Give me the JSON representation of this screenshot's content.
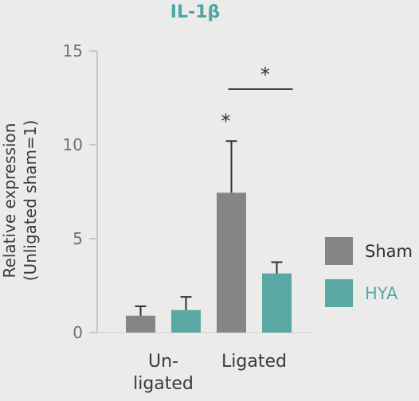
{
  "chart_data": {
    "type": "bar",
    "title": "IL-1β",
    "ylabel_lines": [
      "Relative expression",
      "(Unligated sham=1)"
    ],
    "categories": [
      {
        "lines": [
          "Un-",
          "ligated"
        ]
      },
      {
        "lines": [
          "Ligated"
        ]
      }
    ],
    "series": [
      {
        "name": "Sham",
        "color": "#858585",
        "values": [
          0.9,
          7.45
        ],
        "errors": [
          0.5,
          2.75
        ]
      },
      {
        "name": "HYA",
        "color": "#5aa8a4",
        "values": [
          1.2,
          3.15
        ],
        "errors": [
          0.7,
          0.6
        ]
      }
    ],
    "ylim": [
      0,
      15
    ],
    "yticks": [
      0,
      5,
      10,
      15
    ],
    "title_color": "#4fa6a2",
    "legend_position": "right",
    "annotations": [
      {
        "text": "*",
        "type": "bar-star",
        "category": 1,
        "series": 0
      },
      {
        "text": "*",
        "type": "bracket",
        "category": 1,
        "series": [
          0,
          1
        ]
      }
    ]
  }
}
